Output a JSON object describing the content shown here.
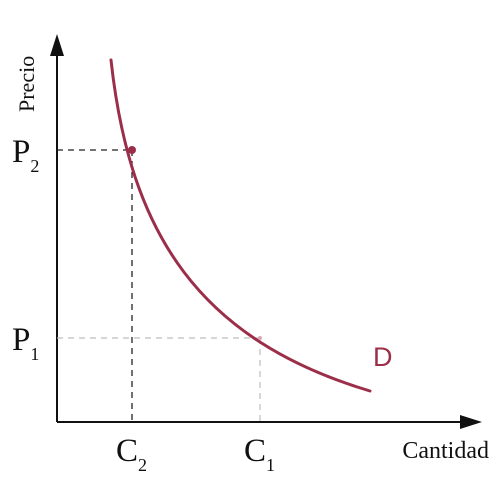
{
  "chart_data": {
    "type": "line",
    "title": "",
    "xlabel": "Cantidad",
    "ylabel": "Precio",
    "grid": false,
    "legend": "none",
    "series": [
      {
        "name": "D",
        "color": "#9b2f4a"
      }
    ],
    "points": [
      {
        "name": "2",
        "price_label": "P",
        "quantity_label": "C",
        "subscript": "2"
      },
      {
        "name": "1",
        "price_label": "P",
        "quantity_label": "C",
        "subscript": "1"
      }
    ],
    "colors": {
      "axis": "#111111",
      "curve": "#9b2f4a",
      "guide": "#222222",
      "guide_light": "#bdbdbd"
    }
  }
}
